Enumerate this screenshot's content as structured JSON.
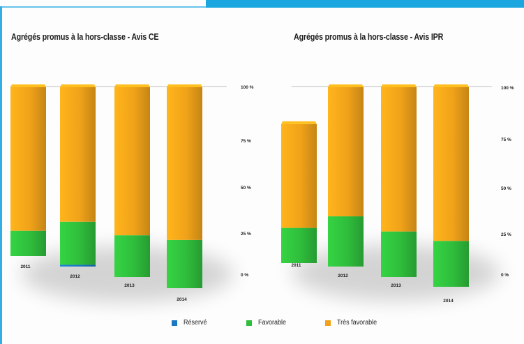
{
  "colors": {
    "accent_band": "#1aa7df",
    "frame_border": "#33aee3",
    "reserve": "#1a78c2",
    "favorable": "#2fbd3c",
    "tres_favorable": "#f0a219"
  },
  "legend": [
    {
      "key": "reserve",
      "label": "Réservé"
    },
    {
      "key": "favorable",
      "label": "Favorable"
    },
    {
      "key": "tres_favorable",
      "label": "Très favorable"
    }
  ],
  "chart_data": [
    {
      "type": "bar",
      "stacked": true,
      "title": "Agrégés promus à la hors-classe - Avis CE",
      "categories": [
        "2011",
        "2012",
        "2013",
        "2014"
      ],
      "series": [
        {
          "name": "Réservé",
          "values": [
            0,
            1,
            0,
            0
          ]
        },
        {
          "name": "Favorable",
          "values": [
            15,
            24,
            22,
            24
          ]
        },
        {
          "name": "Très favorable",
          "values": [
            85,
            75,
            78,
            76
          ]
        }
      ],
      "ylim": [
        0,
        100
      ],
      "y_ticks": [
        "0 %",
        "25 %",
        "50 %",
        "75 %",
        "100 %"
      ],
      "grid": "top line only",
      "legend_position": "bottom"
    },
    {
      "type": "bar",
      "stacked": true,
      "title": "Agrégés promus à la hors-classe - Avis IPR",
      "categories": [
        "2011",
        "2012",
        "2013",
        "2014"
      ],
      "series": [
        {
          "name": "Réservé",
          "values": [
            0,
            0,
            0,
            0
          ]
        },
        {
          "name": "Favorable",
          "values": [
            20,
            28,
            24,
            23
          ]
        },
        {
          "name": "Très favorable",
          "values": [
            59,
            72,
            76,
            77
          ]
        }
      ],
      "ylim": [
        0,
        100
      ],
      "y_ticks": [
        "0 %",
        "25 %",
        "50 %",
        "75 %",
        "100 %"
      ],
      "grid": "top line only",
      "legend_position": "bottom"
    }
  ]
}
